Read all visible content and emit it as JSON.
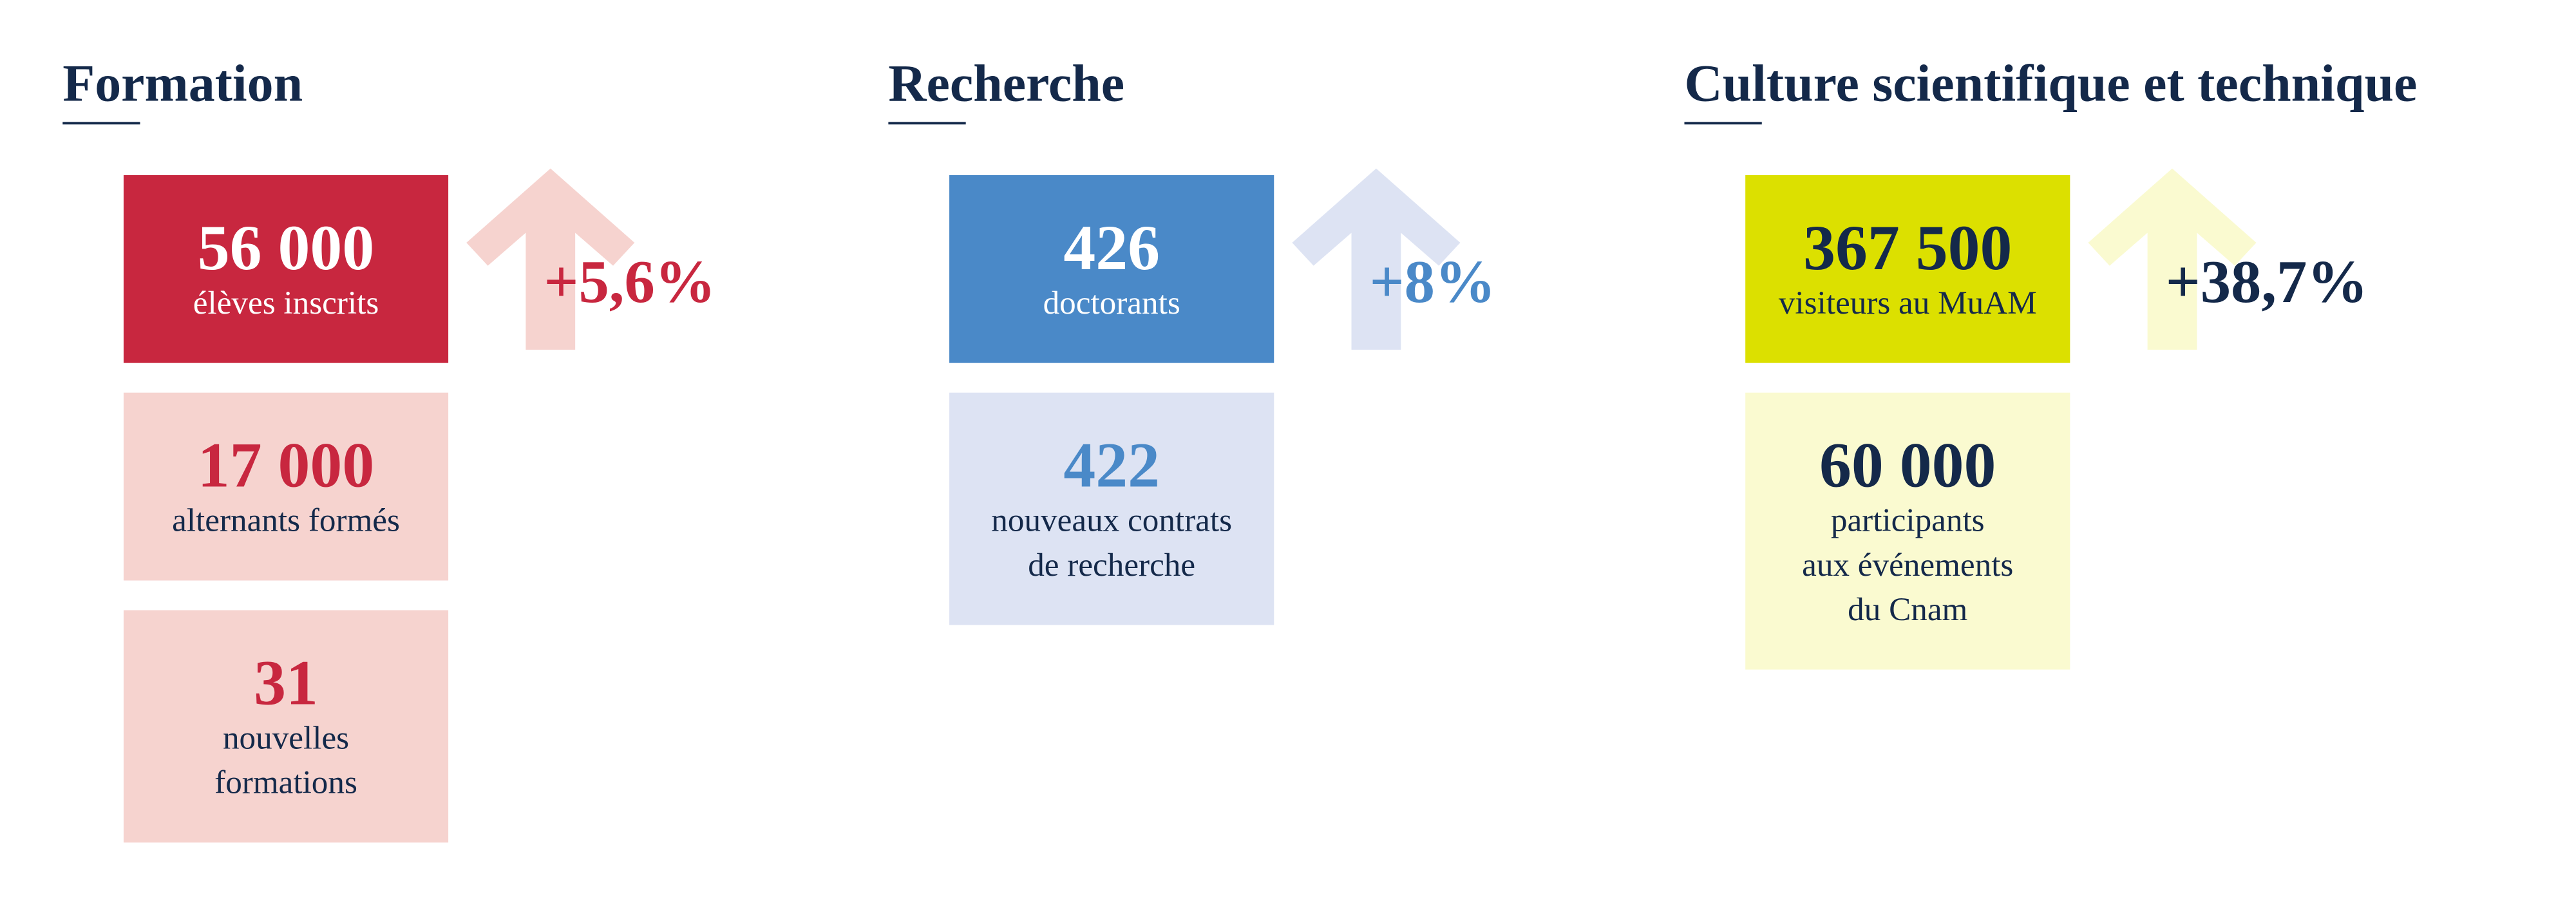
{
  "sections": [
    {
      "title": "Formation",
      "change": "+5,6%",
      "stats": [
        {
          "value": "56 000",
          "label": [
            "élèves inscrits"
          ]
        },
        {
          "value": "17 000",
          "label": [
            "alternants formés"
          ]
        },
        {
          "value": "31",
          "label": [
            "nouvelles",
            "formations"
          ]
        }
      ]
    },
    {
      "title": "Recherche",
      "change": "+8%",
      "stats": [
        {
          "value": "426",
          "label": [
            "doctorants"
          ]
        },
        {
          "value": "422",
          "label": [
            "nouveaux contrats",
            "de recherche"
          ]
        }
      ]
    },
    {
      "title": "Culture scientifique et technique",
      "change": "+38,7%",
      "stats": [
        {
          "value": "367 500",
          "label": [
            "visiteurs au MuAM"
          ]
        },
        {
          "value": "60 000",
          "label": [
            "participants",
            "aux événements",
            "du Cnam"
          ]
        }
      ]
    }
  ]
}
